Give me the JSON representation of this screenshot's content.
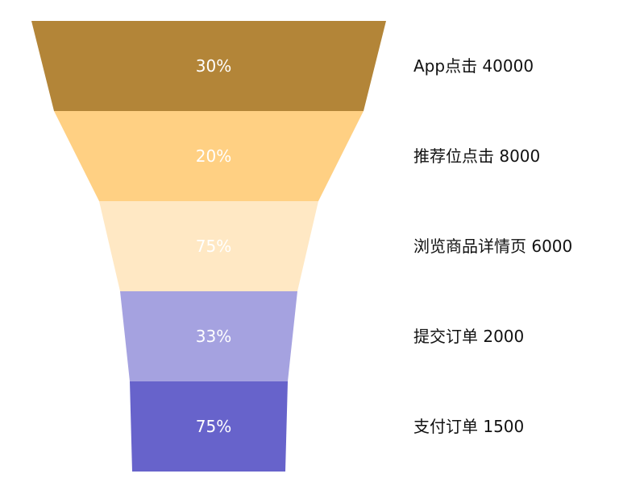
{
  "chart_data": {
    "type": "funnel",
    "title": "",
    "stages": [
      {
        "name": "App点击",
        "value": 40000,
        "percent_label": "30%",
        "color": "#b38538"
      },
      {
        "name": "推荐位点击",
        "value": 8000,
        "percent_label": "20%",
        "color": "#ffd083"
      },
      {
        "name": "浏览商品详情页",
        "value": 6000,
        "percent_label": "75%",
        "color": "#ffe8c4"
      },
      {
        "name": "提交订单",
        "value": 2000,
        "percent_label": "33%",
        "color": "#a5a2e0"
      },
      {
        "name": "支付订单",
        "value": 1500,
        "percent_label": "75%",
        "color": "#6763cb"
      }
    ],
    "label_placement": "right",
    "percent_label_color": "#ffffff"
  }
}
